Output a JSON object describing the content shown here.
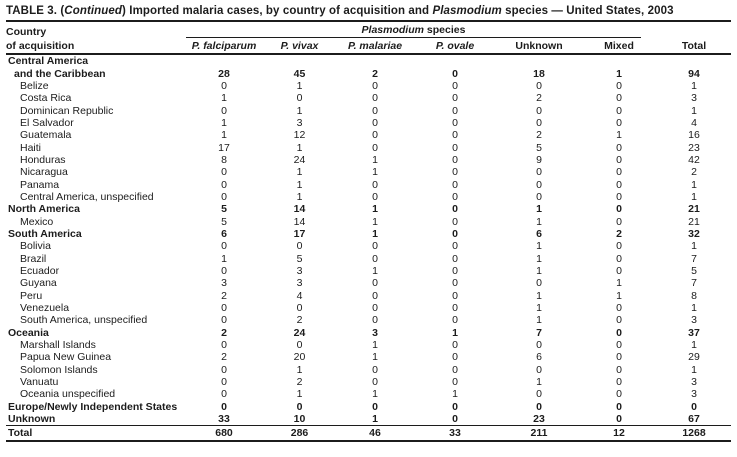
{
  "title": {
    "t1": "TABLE 3. (",
    "t2": "Continued",
    "t3": ") Imported malaria cases, by country of acquisition and ",
    "t4": "Plasmodium",
    "t5": " species — United States, 2003"
  },
  "header": {
    "country_line1": "Country",
    "country_line2": "of acquisition",
    "group_italic": "Plasmodium",
    "group_rest": " species",
    "columns": [
      {
        "label": "P. falciparum",
        "italic": true
      },
      {
        "label": "P. vivax",
        "italic": true
      },
      {
        "label": "P. malariae",
        "italic": true
      },
      {
        "label": "P. ovale",
        "italic": true
      },
      {
        "label": "Unknown",
        "italic": false
      },
      {
        "label": "Mixed",
        "italic": false
      },
      {
        "label": "Total",
        "italic": false
      }
    ]
  },
  "rows": [
    {
      "label": "Central America",
      "level": 0,
      "bold": true,
      "values": []
    },
    {
      "label": "and the Caribbean",
      "level": 1,
      "bold": true,
      "values": [
        "28",
        "45",
        "2",
        "0",
        "18",
        "1",
        "94"
      ]
    },
    {
      "label": "Belize",
      "level": 2,
      "bold": false,
      "values": [
        "0",
        "1",
        "0",
        "0",
        "0",
        "0",
        "1"
      ]
    },
    {
      "label": "Costa Rica",
      "level": 2,
      "bold": false,
      "values": [
        "1",
        "0",
        "0",
        "0",
        "2",
        "0",
        "3"
      ]
    },
    {
      "label": "Dominican Republic",
      "level": 2,
      "bold": false,
      "values": [
        "0",
        "1",
        "0",
        "0",
        "0",
        "0",
        "1"
      ]
    },
    {
      "label": "El Salvador",
      "level": 2,
      "bold": false,
      "values": [
        "1",
        "3",
        "0",
        "0",
        "0",
        "0",
        "4"
      ]
    },
    {
      "label": "Guatemala",
      "level": 2,
      "bold": false,
      "values": [
        "1",
        "12",
        "0",
        "0",
        "2",
        "1",
        "16"
      ]
    },
    {
      "label": "Haiti",
      "level": 2,
      "bold": false,
      "values": [
        "17",
        "1",
        "0",
        "0",
        "5",
        "0",
        "23"
      ]
    },
    {
      "label": "Honduras",
      "level": 2,
      "bold": false,
      "values": [
        "8",
        "24",
        "1",
        "0",
        "9",
        "0",
        "42"
      ]
    },
    {
      "label": "Nicaragua",
      "level": 2,
      "bold": false,
      "values": [
        "0",
        "1",
        "1",
        "0",
        "0",
        "0",
        "2"
      ]
    },
    {
      "label": "Panama",
      "level": 2,
      "bold": false,
      "values": [
        "0",
        "1",
        "0",
        "0",
        "0",
        "0",
        "1"
      ]
    },
    {
      "label": "Central America, unspecified",
      "level": 2,
      "bold": false,
      "values": [
        "0",
        "1",
        "0",
        "0",
        "0",
        "0",
        "1"
      ]
    },
    {
      "label": "North America",
      "level": 0,
      "bold": true,
      "values": [
        "5",
        "14",
        "1",
        "0",
        "1",
        "0",
        "21"
      ]
    },
    {
      "label": "Mexico",
      "level": 2,
      "bold": false,
      "values": [
        "5",
        "14",
        "1",
        "0",
        "1",
        "0",
        "21"
      ]
    },
    {
      "label": "South America",
      "level": 0,
      "bold": true,
      "values": [
        "6",
        "17",
        "1",
        "0",
        "6",
        "2",
        "32"
      ]
    },
    {
      "label": "Bolivia",
      "level": 2,
      "bold": false,
      "values": [
        "0",
        "0",
        "0",
        "0",
        "1",
        "0",
        "1"
      ]
    },
    {
      "label": "Brazil",
      "level": 2,
      "bold": false,
      "values": [
        "1",
        "5",
        "0",
        "0",
        "1",
        "0",
        "7"
      ]
    },
    {
      "label": "Ecuador",
      "level": 2,
      "bold": false,
      "values": [
        "0",
        "3",
        "1",
        "0",
        "1",
        "0",
        "5"
      ]
    },
    {
      "label": "Guyana",
      "level": 2,
      "bold": false,
      "values": [
        "3",
        "3",
        "0",
        "0",
        "0",
        "1",
        "7"
      ]
    },
    {
      "label": "Peru",
      "level": 2,
      "bold": false,
      "values": [
        "2",
        "4",
        "0",
        "0",
        "1",
        "1",
        "8"
      ]
    },
    {
      "label": "Venezuela",
      "level": 2,
      "bold": false,
      "values": [
        "0",
        "0",
        "0",
        "0",
        "1",
        "0",
        "1"
      ]
    },
    {
      "label": "South America, unspecified",
      "level": 2,
      "bold": false,
      "values": [
        "0",
        "2",
        "0",
        "0",
        "1",
        "0",
        "3"
      ]
    },
    {
      "label": "Oceania",
      "level": 0,
      "bold": true,
      "values": [
        "2",
        "24",
        "3",
        "1",
        "7",
        "0",
        "37"
      ]
    },
    {
      "label": "Marshall Islands",
      "level": 2,
      "bold": false,
      "values": [
        "0",
        "0",
        "1",
        "0",
        "0",
        "0",
        "1"
      ]
    },
    {
      "label": "Papua New Guinea",
      "level": 2,
      "bold": false,
      "values": [
        "2",
        "20",
        "1",
        "0",
        "6",
        "0",
        "29"
      ]
    },
    {
      "label": "Solomon Islands",
      "level": 2,
      "bold": false,
      "values": [
        "0",
        "1",
        "0",
        "0",
        "0",
        "0",
        "1"
      ]
    },
    {
      "label": "Vanuatu",
      "level": 2,
      "bold": false,
      "values": [
        "0",
        "2",
        "0",
        "0",
        "1",
        "0",
        "3"
      ]
    },
    {
      "label": "Oceania unspecified",
      "level": 2,
      "bold": false,
      "values": [
        "0",
        "1",
        "1",
        "1",
        "0",
        "0",
        "3"
      ]
    },
    {
      "label": "Europe/Newly Independent States",
      "level": 0,
      "bold": true,
      "values": [
        "0",
        "0",
        "0",
        "0",
        "0",
        "0",
        "0"
      ]
    },
    {
      "label": "Unknown",
      "level": 0,
      "bold": true,
      "values": [
        "33",
        "10",
        "1",
        "0",
        "23",
        "0",
        "67"
      ]
    },
    {
      "label": "Total",
      "level": 0,
      "bold": true,
      "values": [
        "680",
        "286",
        "46",
        "33",
        "211",
        "12",
        "1268"
      ]
    }
  ],
  "colors": {
    "text": "#1c1c1c",
    "rule": "#1c1c1c",
    "background": "#ffffff"
  }
}
